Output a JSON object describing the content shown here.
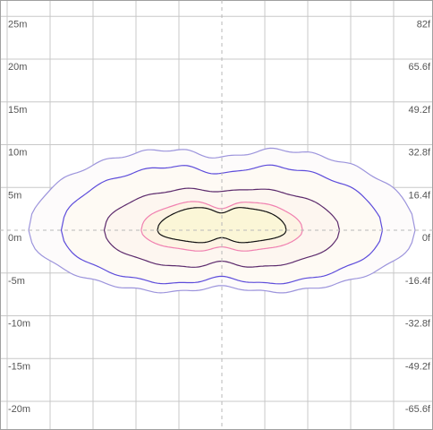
{
  "chart_data": {
    "type": "contour",
    "x_range_m": [
      -25,
      25
    ],
    "y_range_m": [
      -22.5,
      25
    ],
    "grid": true,
    "grid_step_m": 5,
    "left_ticks": [
      {
        "y": 25,
        "label": "25m"
      },
      {
        "y": 20,
        "label": "20m"
      },
      {
        "y": 15,
        "label": "15m"
      },
      {
        "y": 10,
        "label": "10m"
      },
      {
        "y": 5,
        "label": "5m"
      },
      {
        "y": 0,
        "label": "0m"
      },
      {
        "y": -5,
        "label": "-5m"
      },
      {
        "y": -10,
        "label": "-10m"
      },
      {
        "y": -15,
        "label": "-15m"
      },
      {
        "y": -20,
        "label": "-20m"
      }
    ],
    "right_ticks": [
      {
        "y": 25,
        "label": "82f"
      },
      {
        "y": 20,
        "label": "65.6f"
      },
      {
        "y": 15,
        "label": "49.2f"
      },
      {
        "y": 10,
        "label": "32.8f"
      },
      {
        "y": 5,
        "label": "16.4f"
      },
      {
        "y": 0,
        "label": "0f"
      },
      {
        "y": -5,
        "label": "-16.4f"
      },
      {
        "y": -10,
        "label": "-32.8f"
      },
      {
        "y": -15,
        "label": "-49.2f"
      },
      {
        "y": -20,
        "label": "-65.6f"
      }
    ],
    "series": [
      {
        "stroke": "#9c94dc",
        "fill": "#fdfbfb",
        "x_ext": [
          -22.5,
          22.5
        ],
        "top": 9.8,
        "bot": -7.5,
        "neck_top": 8.5,
        "neck_bot": -6.6
      },
      {
        "stroke": "#5d4cdb",
        "fill": "#fefaf4",
        "x_ext": [
          -18.7,
          18.7
        ],
        "top": 7.8,
        "bot": -6.5,
        "neck_top": 6.6,
        "neck_bot": -5.5
      },
      {
        "stroke": "#5c2a6c",
        "fill": "#fdf6f0",
        "x_ext": [
          -13.7,
          13.7
        ],
        "top": 5.0,
        "bot": -4.5,
        "neck_top": 4.5,
        "neck_bot": -3.7
      },
      {
        "stroke": "#f080b0",
        "fill": "#fdf3e4",
        "x_ext": [
          -9.4,
          9.4
        ],
        "top": 3.5,
        "bot": -2.5,
        "neck_top": 2.5,
        "neck_bot": -2.0
      },
      {
        "stroke": "#111111",
        "fill": "#fbf6d7",
        "x_ext": [
          -7.5,
          7.5
        ],
        "top": 2.8,
        "bot": -1.5,
        "neck_top": 2.0,
        "neck_bot": -0.9
      }
    ]
  }
}
